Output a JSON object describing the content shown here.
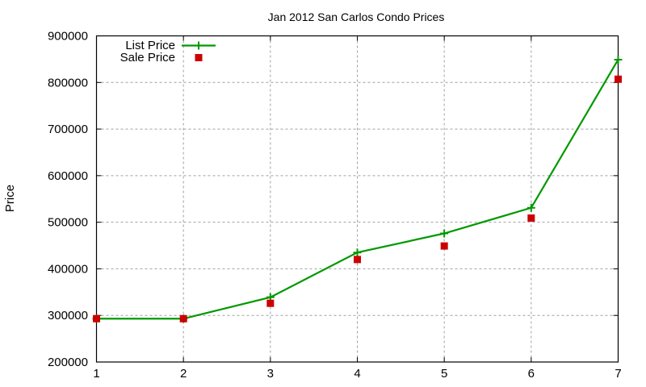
{
  "chart_data": {
    "type": "line",
    "title": "Jan 2012 San Carlos Condo Prices",
    "xlabel": "",
    "ylabel": "Price",
    "x": [
      1,
      2,
      3,
      4,
      5,
      6,
      7
    ],
    "xlim": [
      1,
      7
    ],
    "ylim": [
      200000,
      900000
    ],
    "xticks": [
      "1",
      "2",
      "3",
      "4",
      "5",
      "6",
      "7"
    ],
    "yticks": [
      "200000",
      "300000",
      "400000",
      "500000",
      "600000",
      "700000",
      "800000",
      "900000"
    ],
    "grid": true,
    "legend_position": "top-left",
    "series": [
      {
        "name": "List Price",
        "style": "linespoints",
        "marker": "plus",
        "color": "#009900",
        "values": [
          293000,
          293000,
          339000,
          435000,
          476000,
          531000,
          849000
        ]
      },
      {
        "name": "Sale Price",
        "style": "points",
        "marker": "square",
        "color": "#cc0000",
        "values": [
          293000,
          293000,
          326000,
          420000,
          449000,
          509000,
          807000
        ]
      }
    ]
  }
}
